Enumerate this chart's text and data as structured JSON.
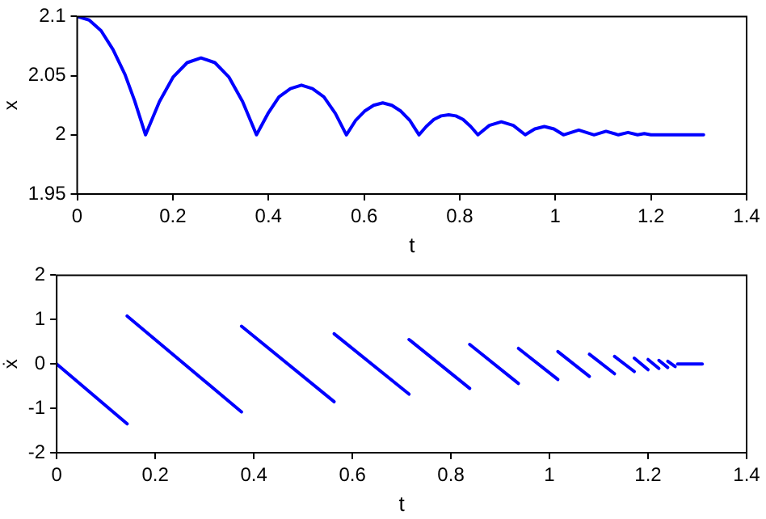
{
  "chart_data": [
    {
      "type": "line",
      "xlabel": "t",
      "ylabel": "x",
      "xlim": [
        0,
        1.4
      ],
      "xticks": [
        0,
        0.2,
        0.4,
        0.6,
        0.8,
        1,
        1.2,
        1.4
      ],
      "ylim": [
        1.95,
        2.1
      ],
      "yticks": [
        1.95,
        2,
        2.05,
        2.1
      ],
      "marker": "none",
      "line_style": "solid",
      "series": [
        {
          "color": "#0000ff",
          "x": [
            0,
            0.025,
            0.05,
            0.075,
            0.1,
            0.12,
            0.143,
            0.172,
            0.201,
            0.23,
            0.259,
            0.288,
            0.317,
            0.346,
            0.375,
            0.399,
            0.422,
            0.446,
            0.469,
            0.492,
            0.516,
            0.54,
            0.563,
            0.582,
            0.601,
            0.62,
            0.639,
            0.658,
            0.677,
            0.696,
            0.715,
            0.73,
            0.746,
            0.761,
            0.777,
            0.792,
            0.807,
            0.823,
            0.838,
            0.862,
            0.887,
            0.912,
            0.937,
            0.957,
            0.977,
            0.997,
            1.017,
            1.049,
            1.081,
            1.106,
            1.132,
            1.152,
            1.172,
            1.186,
            1.2,
            1.31
          ],
          "values": [
            2.1,
            2.097,
            2.088,
            2.072,
            2.051,
            2.029,
            2.0,
            2.028,
            2.049,
            2.061,
            2.065,
            2.061,
            2.049,
            2.028,
            2.0,
            2.018,
            2.032,
            2.039,
            2.042,
            2.039,
            2.032,
            2.018,
            2.0,
            2.012,
            2.02,
            2.025,
            2.027,
            2.025,
            2.02,
            2.012,
            2.0,
            2.007,
            2.013,
            2.016,
            2.017,
            2.016,
            2.013,
            2.007,
            2.0,
            2.008,
            2.011,
            2.008,
            2.0,
            2.005,
            2.007,
            2.005,
            2.0,
            2.004,
            2.0,
            2.003,
            2.0,
            2.002,
            2.0,
            2.001,
            2.0,
            2.0
          ]
        }
      ]
    },
    {
      "type": "line",
      "xlabel": "t",
      "ylabel": "ẋ",
      "xlim": [
        0,
        1.4
      ],
      "xticks": [
        0,
        0.2,
        0.4,
        0.6,
        0.8,
        1,
        1.2,
        1.4
      ],
      "ylim": [
        -2,
        2
      ],
      "yticks": [
        -2,
        -1,
        0,
        1,
        2
      ],
      "marker": "none",
      "line_style": "solid",
      "series": [
        {
          "color": "#0000ff",
          "x": [
            0,
            0.143
          ],
          "values": [
            0,
            -1.35
          ]
        },
        {
          "color": "#0000ff",
          "x": [
            0.143,
            0.375
          ],
          "values": [
            1.08,
            -1.08
          ]
        },
        {
          "color": "#0000ff",
          "x": [
            0.375,
            0.563
          ],
          "values": [
            0.85,
            -0.85
          ]
        },
        {
          "color": "#0000ff",
          "x": [
            0.563,
            0.715
          ],
          "values": [
            0.68,
            -0.68
          ]
        },
        {
          "color": "#0000ff",
          "x": [
            0.715,
            0.838
          ],
          "values": [
            0.55,
            -0.55
          ]
        },
        {
          "color": "#0000ff",
          "x": [
            0.838,
            0.937
          ],
          "values": [
            0.44,
            -0.44
          ]
        },
        {
          "color": "#0000ff",
          "x": [
            0.937,
            1.017
          ],
          "values": [
            0.35,
            -0.35
          ]
        },
        {
          "color": "#0000ff",
          "x": [
            1.017,
            1.081
          ],
          "values": [
            0.28,
            -0.28
          ]
        },
        {
          "color": "#0000ff",
          "x": [
            1.081,
            1.132
          ],
          "values": [
            0.22,
            -0.22
          ]
        },
        {
          "color": "#0000ff",
          "x": [
            1.132,
            1.172
          ],
          "values": [
            0.17,
            -0.17
          ]
        },
        {
          "color": "#0000ff",
          "x": [
            1.172,
            1.2
          ],
          "values": [
            0.13,
            -0.13
          ]
        },
        {
          "color": "#0000ff",
          "x": [
            1.2,
            1.222
          ],
          "values": [
            0.1,
            -0.1
          ]
        },
        {
          "color": "#0000ff",
          "x": [
            1.222,
            1.24
          ],
          "values": [
            0.08,
            -0.08
          ]
        },
        {
          "color": "#0000ff",
          "x": [
            1.24,
            1.255
          ],
          "values": [
            0.06,
            -0.06
          ]
        },
        {
          "color": "#0000ff",
          "x": [
            1.26,
            1.31
          ],
          "values": [
            0,
            0
          ]
        }
      ]
    }
  ]
}
